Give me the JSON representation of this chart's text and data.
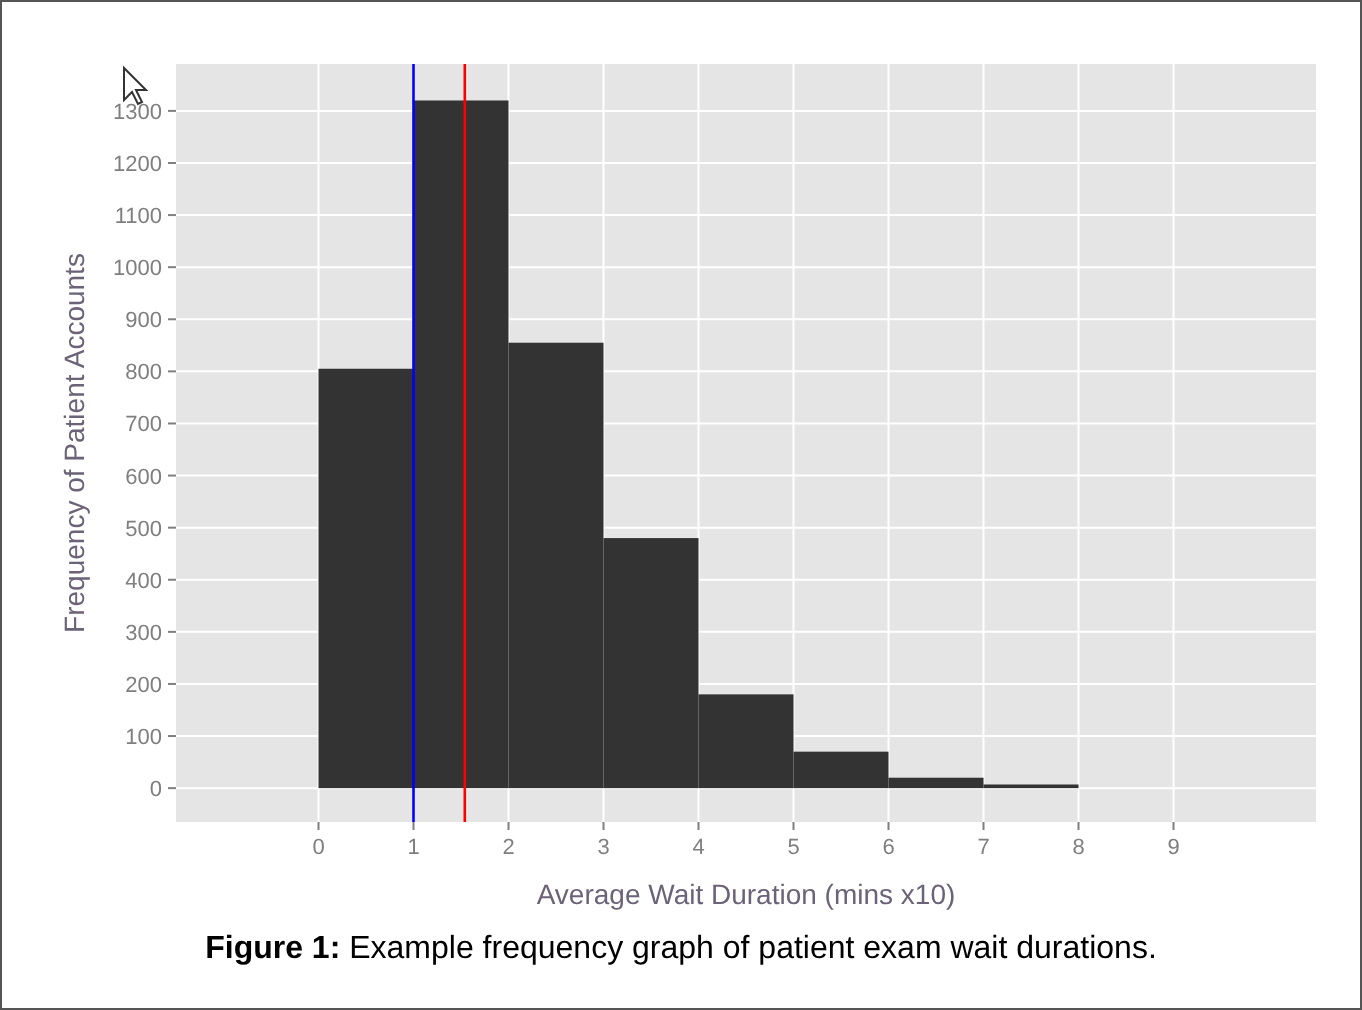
{
  "chart_data": {
    "type": "histogram",
    "xlabel": "Average Wait Duration (mins x10)",
    "ylabel": "Frequency of Patient Accounts",
    "bins": [
      0,
      1,
      2,
      3,
      4,
      5,
      6,
      7,
      8
    ],
    "values": [
      805,
      1320,
      855,
      480,
      180,
      70,
      20,
      7
    ],
    "color": "#333333",
    "xlim": [
      -1.5,
      10.5
    ],
    "xticks": [
      0,
      1,
      2,
      3,
      4,
      5,
      6,
      7,
      8,
      9
    ],
    "ylim": [
      -65,
      1390
    ],
    "yticks": [
      0,
      100,
      200,
      300,
      400,
      500,
      600,
      700,
      800,
      900,
      1000,
      1100,
      1200,
      1300
    ],
    "grid": true,
    "ref_lines": [
      {
        "axis": "x",
        "value": 1,
        "color": "#0000ff"
      },
      {
        "axis": "x",
        "value": 1.54,
        "color": "#ff0000"
      }
    ],
    "annotations": [
      "Figure 1: Example frequency graph of patient exam wait durations."
    ]
  }
}
